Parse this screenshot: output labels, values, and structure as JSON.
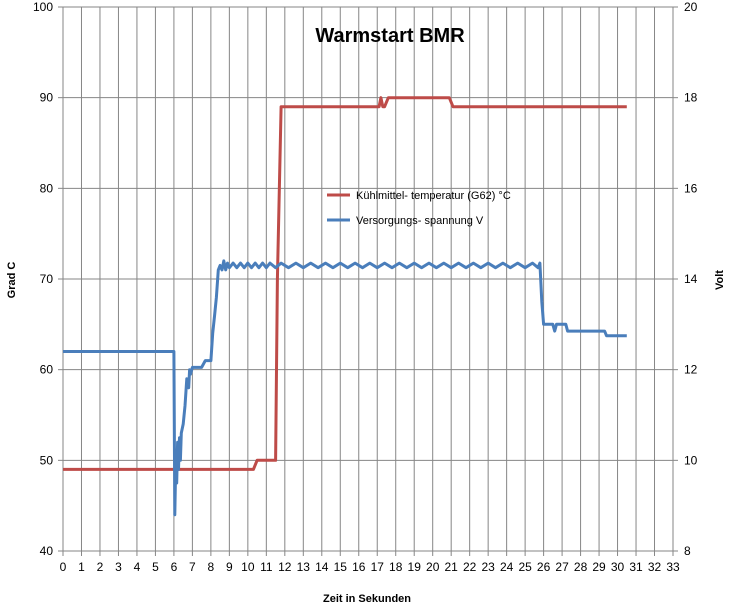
{
  "chart_data": {
    "type": "line",
    "title": "Warmstart BMR",
    "xlabel": "Zeit in Sekunden",
    "ylabel": "Grad C",
    "y2label": "Volt",
    "xlim": [
      0,
      33
    ],
    "ylim": [
      40,
      100
    ],
    "y2lim": [
      8,
      20
    ],
    "x_ticks": [
      "0",
      "1",
      "2",
      "3",
      "4",
      "5",
      "6",
      "7",
      "8",
      "9",
      "10",
      "11",
      "12",
      "13",
      "14",
      "15",
      "16",
      "17",
      "18",
      "19",
      "20",
      "21",
      "22",
      "23",
      "24",
      "25",
      "26",
      "27",
      "28",
      "29",
      "30",
      "31",
      "32",
      "33"
    ],
    "y_ticks": [
      "40",
      "50",
      "60",
      "70",
      "80",
      "90",
      "100"
    ],
    "y2_ticks": [
      "8",
      "10",
      "12",
      "14",
      "16",
      "18",
      "20"
    ],
    "grid": true,
    "legend_position": "center",
    "series": [
      {
        "name": "Kühlmittel- temperatur (G62) °C",
        "axis": "left",
        "color": "#be4b48",
        "x": [
          0,
          10.3,
          10.5,
          11.5,
          11.6,
          11.8,
          17.1,
          17.2,
          17.3,
          17.4,
          17.6,
          20.9,
          21.1,
          30.5
        ],
        "y": [
          49,
          49,
          50,
          50,
          70,
          89,
          89,
          90,
          89,
          89,
          90,
          90,
          89,
          89
        ]
      },
      {
        "name": "Versorgungs- spannung  V",
        "axis": "right",
        "color": "#4a7ebb",
        "x": [
          0,
          6.0,
          6.05,
          6.1,
          6.15,
          6.2,
          6.25,
          6.3,
          6.35,
          6.4,
          6.5,
          6.6,
          6.7,
          6.8,
          6.85,
          6.9,
          7.0,
          7.1,
          7.5,
          7.7,
          8.0,
          8.1,
          8.2,
          8.3,
          8.4,
          8.5,
          8.6,
          8.7,
          8.8,
          8.9,
          9.0,
          9.2,
          9.4,
          9.6,
          9.8,
          10.0,
          10.2,
          10.4,
          10.6,
          10.8,
          11.0,
          11.2,
          11.5,
          11.8,
          12.2,
          12.6,
          13.0,
          13.4,
          13.8,
          14.2,
          14.6,
          15.0,
          15.4,
          15.8,
          16.2,
          16.6,
          17.0,
          17.4,
          17.8,
          18.2,
          18.6,
          19.0,
          19.4,
          19.8,
          20.2,
          20.6,
          21.0,
          21.4,
          21.8,
          22.2,
          22.6,
          23.0,
          23.4,
          23.8,
          24.2,
          24.6,
          25.0,
          25.4,
          25.7,
          25.8,
          25.9,
          26.0,
          26.5,
          26.6,
          26.7,
          26.8,
          27.2,
          27.3,
          28.5,
          29.3,
          29.4,
          30.5
        ],
        "y": [
          12.4,
          12.4,
          8.8,
          10.0,
          9.5,
          10.4,
          9.8,
          10.5,
          10.0,
          10.6,
          10.8,
          11.2,
          11.8,
          11.6,
          12.0,
          11.9,
          12.05,
          12.05,
          12.05,
          12.2,
          12.2,
          12.8,
          13.2,
          13.6,
          14.2,
          14.3,
          14.2,
          14.4,
          14.2,
          14.35,
          14.25,
          14.35,
          14.25,
          14.35,
          14.25,
          14.35,
          14.25,
          14.35,
          14.25,
          14.35,
          14.25,
          14.35,
          14.25,
          14.35,
          14.25,
          14.35,
          14.25,
          14.35,
          14.25,
          14.35,
          14.25,
          14.35,
          14.25,
          14.35,
          14.25,
          14.35,
          14.25,
          14.35,
          14.25,
          14.35,
          14.25,
          14.35,
          14.25,
          14.35,
          14.25,
          14.35,
          14.25,
          14.35,
          14.25,
          14.35,
          14.25,
          14.35,
          14.25,
          14.35,
          14.25,
          14.35,
          14.25,
          14.35,
          14.25,
          14.35,
          13.5,
          13.0,
          13.0,
          12.85,
          13.0,
          13.0,
          13.0,
          12.85,
          12.85,
          12.85,
          12.75,
          12.75
        ]
      }
    ]
  }
}
